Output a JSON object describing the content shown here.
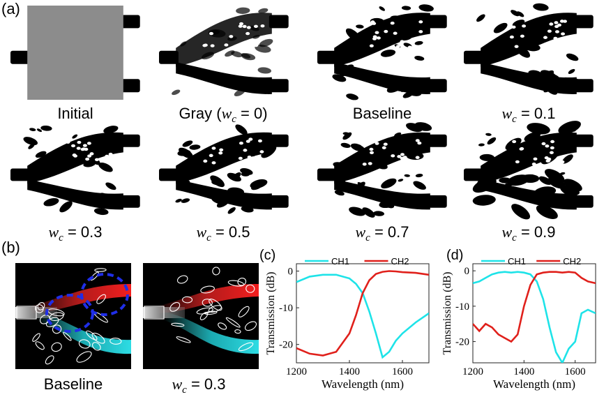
{
  "figure": {
    "panel_labels": [
      "(a)",
      "(b)"
    ],
    "captions_a": [
      {
        "prefix": "Initial"
      },
      {
        "prefix": "Gray (",
        "var": "w",
        "sub": "c",
        "suffix": " = 0)"
      },
      {
        "prefix": "Baseline"
      },
      {
        "var": "w",
        "sub": "c",
        "suffix": " = 0.1"
      },
      {
        "var": "w",
        "sub": "c",
        "suffix": " = 0.3"
      },
      {
        "var": "w",
        "sub": "c",
        "suffix": " = 0.5"
      },
      {
        "var": "w",
        "sub": "c",
        "suffix": " = 0.7"
      },
      {
        "var": "w",
        "sub": "c",
        "suffix": " = 0.9"
      }
    ],
    "captions_b": [
      {
        "prefix": "Baseline"
      },
      {
        "var": "w",
        "sub": "c",
        "suffix": " = 0.3"
      }
    ]
  },
  "chart_data": [
    {
      "type": "line",
      "panel_label": "(c)",
      "x_label": "Wavelength (nm)",
      "y_label": "Transmission (dB)",
      "x": [
        1200,
        1250,
        1300,
        1350,
        1400,
        1425,
        1450,
        1475,
        1500,
        1525,
        1550,
        1575,
        1600,
        1650,
        1700
      ],
      "series": [
        {
          "name": "CH1",
          "color": "#1ee3e8",
          "values": [
            -3,
            -1.5,
            -1,
            -1,
            -2,
            -3.5,
            -6,
            -11,
            -17,
            -23.5,
            -22,
            -19,
            -17,
            -14,
            -11.5
          ]
        },
        {
          "name": "CH2",
          "color": "#e0201b",
          "values": [
            -21,
            -22.5,
            -23,
            -22,
            -17,
            -12,
            -6,
            -2.5,
            -0.8,
            -0.2,
            0,
            -0.1,
            -0.3,
            -0.5,
            -1
          ]
        }
      ],
      "xlim": [
        1200,
        1700
      ],
      "ylim": [
        -25,
        2
      ],
      "xticks": [
        1200,
        1400,
        1600
      ],
      "yticks": [
        -20,
        -10,
        0
      ],
      "legend": "top"
    },
    {
      "type": "line",
      "panel_label": "(d)",
      "x_label": "Wavelength (nm)",
      "y_label": "Transmission (dB)",
      "x": [
        1200,
        1225,
        1250,
        1275,
        1300,
        1325,
        1350,
        1375,
        1400,
        1425,
        1450,
        1475,
        1500,
        1525,
        1550,
        1575,
        1600,
        1625,
        1650,
        1680
      ],
      "series": [
        {
          "name": "CH1",
          "color": "#1ee3e8",
          "values": [
            -3.5,
            -3,
            -2,
            -1,
            -0.5,
            -0.3,
            -0.5,
            -0.3,
            -0.5,
            -1,
            -3,
            -8,
            -16,
            -23,
            -26,
            -22,
            -20,
            -12,
            -11,
            -12
          ]
        },
        {
          "name": "CH2",
          "color": "#e0201b",
          "values": [
            -15,
            -17,
            -15,
            -16,
            -18,
            -19,
            -20,
            -18,
            -10,
            -4,
            -1,
            -0.5,
            -0.3,
            -0.3,
            -0.5,
            -0.3,
            -0.5,
            -2,
            -3,
            -3.5
          ]
        }
      ],
      "xlim": [
        1200,
        1680
      ],
      "ylim": [
        -26,
        2
      ],
      "xticks": [
        1200,
        1400,
        1600
      ],
      "yticks": [
        -20,
        -10,
        0
      ],
      "legend": "top"
    }
  ]
}
